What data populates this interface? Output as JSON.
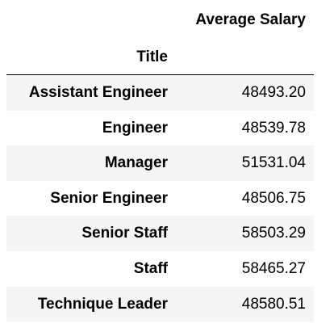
{
  "table": {
    "column_header": "Average Salary",
    "index_name": "Title",
    "rows": [
      {
        "title": "Assistant Engineer",
        "value": "48493.20"
      },
      {
        "title": "Engineer",
        "value": "48539.78"
      },
      {
        "title": "Manager",
        "value": "51531.04"
      },
      {
        "title": "Senior Engineer",
        "value": "48506.75"
      },
      {
        "title": "Senior Staff",
        "value": "58503.29"
      },
      {
        "title": "Staff",
        "value": "58465.27"
      },
      {
        "title": "Technique Leader",
        "value": "48580.51"
      }
    ]
  },
  "colors": {
    "stripe": "#f5f5f5",
    "background": "#ffffff",
    "text": "#000000"
  }
}
